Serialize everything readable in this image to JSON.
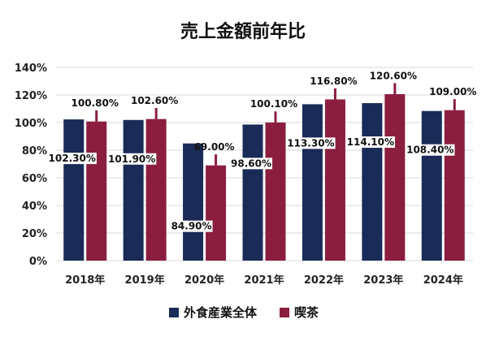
{
  "chart_data": {
    "type": "bar",
    "title": "売上金額前年比",
    "categories": [
      "2018年",
      "2019年",
      "2020年",
      "2021年",
      "2022年",
      "2023年",
      "2024年"
    ],
    "series": [
      {
        "name": "外食産業全体",
        "color": "#1a2b57",
        "values": [
          102.3,
          101.9,
          84.9,
          98.6,
          113.3,
          114.1,
          108.4
        ],
        "labels": [
          "102.30%",
          "101.90%",
          "84.90%",
          "98.60%",
          "113.30%",
          "114.10%",
          "108.40%"
        ]
      },
      {
        "name": "喫茶",
        "color": "#8b1e3f",
        "values": [
          100.8,
          102.6,
          69.0,
          100.1,
          116.8,
          120.6,
          109.0
        ],
        "labels": [
          "100.80%",
          "102.60%",
          "69.00%",
          "100.10%",
          "116.80%",
          "120.60%",
          "109.00%"
        ]
      }
    ],
    "y_ticks": [
      "0%",
      "20%",
      "40%",
      "60%",
      "80%",
      "100%",
      "120%",
      "140%"
    ],
    "ylim": [
      0,
      140
    ],
    "grid": true,
    "legend_position": "bottom"
  }
}
